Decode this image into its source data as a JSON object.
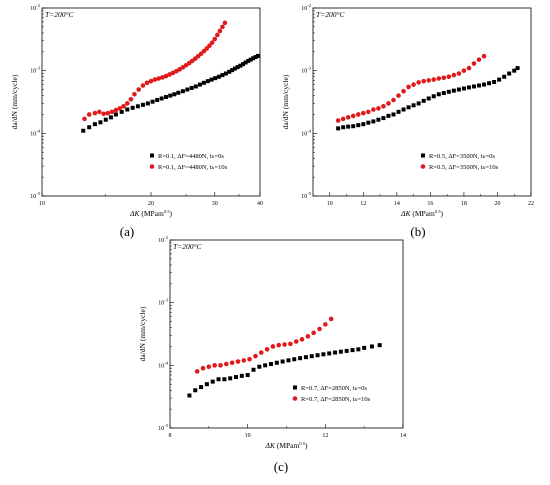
{
  "chart_data": [
    {
      "type": "scatter",
      "panel_label": "(a)",
      "annotation": "T=200°C",
      "xlabel": "ΔK (MPam^0.5)",
      "ylabel": "da/dN (mm/cycle)",
      "xscale": "log",
      "yscale": "log",
      "xlim": [
        10,
        40
      ],
      "ylim": [
        1e-05,
        0.01
      ],
      "x_ticks": [
        10,
        20,
        30,
        40
      ],
      "x_tick_labels": [
        "10",
        "20",
        "30",
        "40"
      ],
      "y_ticks": [
        1e-05,
        0.0001,
        0.001,
        0.01
      ],
      "legend_position": "bottom-right",
      "series": [
        {
          "name": "R=0.1, ΔF=4480N, tₕ=0s",
          "marker": "square",
          "color": "#000000",
          "x": [
            13.0,
            13.5,
            14.0,
            14.5,
            15.0,
            15.5,
            16.0,
            16.6,
            17.2,
            17.8,
            18.4,
            19.0,
            19.6,
            20.2,
            20.8,
            21.4,
            22.0,
            22.6,
            23.2,
            23.8,
            24.5,
            25.2,
            25.9,
            26.6,
            27.3,
            28.0,
            28.7,
            29.4,
            30.1,
            30.8,
            31.5,
            32.2,
            32.9,
            33.5,
            34.1,
            34.7,
            35.3,
            35.9,
            36.5,
            37.1,
            37.7,
            38.3,
            38.9,
            39.5
          ],
          "y": [
            0.00011,
            0.000125,
            0.00014,
            0.00015,
            0.000165,
            0.00018,
            0.0002,
            0.00022,
            0.00024,
            0.000255,
            0.00027,
            0.000285,
            0.0003,
            0.00032,
            0.00034,
            0.00036,
            0.00038,
            0.0004,
            0.00042,
            0.000445,
            0.00047,
            0.0005,
            0.00053,
            0.00056,
            0.0006,
            0.00064,
            0.00068,
            0.00072,
            0.00076,
            0.0008,
            0.00085,
            0.0009,
            0.00096,
            0.00102,
            0.00108,
            0.00114,
            0.0012,
            0.00127,
            0.00135,
            0.00143,
            0.0015,
            0.00158,
            0.00165,
            0.00172
          ]
        },
        {
          "name": "R=0.1, ΔF=4480N, tₕ=10s",
          "marker": "circle",
          "color": "#e0191b",
          "x": [
            13.1,
            13.5,
            14.0,
            14.4,
            14.8,
            15.2,
            15.6,
            16.0,
            16.4,
            16.8,
            17.2,
            17.6,
            18.0,
            18.5,
            19.0,
            19.5,
            20.0,
            20.5,
            21.0,
            21.5,
            22.0,
            22.5,
            23.0,
            23.5,
            24.0,
            24.5,
            25.0,
            25.5,
            26.0,
            26.5,
            27.0,
            27.5,
            28.0,
            28.5,
            29.0,
            29.5,
            30.0,
            30.5,
            31.0,
            31.5,
            32.0
          ],
          "y": [
            0.00017,
            0.0002,
            0.00021,
            0.00022,
            0.000205,
            0.00021,
            0.00022,
            0.000235,
            0.00025,
            0.00027,
            0.0003,
            0.00035,
            0.00042,
            0.0005,
            0.00058,
            0.00064,
            0.00068,
            0.00072,
            0.00075,
            0.00078,
            0.00082,
            0.00087,
            0.00092,
            0.00098,
            0.00105,
            0.00113,
            0.00122,
            0.00132,
            0.00143,
            0.00156,
            0.0017,
            0.00186,
            0.00205,
            0.00225,
            0.0025,
            0.0028,
            0.0032,
            0.0037,
            0.0043,
            0.005,
            0.0058
          ]
        }
      ]
    },
    {
      "type": "scatter",
      "panel_label": "(b)",
      "annotation": "T=200°C",
      "xlabel": "ΔK (MPam^0.5)",
      "ylabel": "da/dN (mm/cycle)",
      "xscale": "linear",
      "yscale": "log",
      "xlim": [
        9,
        22
      ],
      "ylim": [
        1e-05,
        0.01
      ],
      "x_ticks": [
        10,
        12,
        14,
        16,
        18,
        20,
        22
      ],
      "x_tick_labels": [
        "10",
        "12",
        "14",
        "16",
        "18",
        "20",
        "22"
      ],
      "y_ticks": [
        1e-05,
        0.0001,
        0.001,
        0.01
      ],
      "legend_position": "bottom-right",
      "series": [
        {
          "name": "R=0.5, ΔF=3500N, tₕ=0s",
          "marker": "square",
          "color": "#000000",
          "x": [
            10.5,
            10.8,
            11.1,
            11.4,
            11.7,
            12.0,
            12.3,
            12.6,
            12.9,
            13.2,
            13.5,
            13.8,
            14.1,
            14.4,
            14.7,
            15.0,
            15.3,
            15.6,
            15.9,
            16.2,
            16.5,
            16.8,
            17.1,
            17.4,
            17.7,
            18.0,
            18.3,
            18.6,
            18.9,
            19.2,
            19.5,
            19.8,
            20.1,
            20.4,
            20.7,
            21.0,
            21.2
          ],
          "y": [
            0.00012,
            0.000125,
            0.000128,
            0.00013,
            0.000135,
            0.00014,
            0.000148,
            0.000155,
            0.000165,
            0.000175,
            0.00019,
            0.0002,
            0.00022,
            0.00024,
            0.00026,
            0.00028,
            0.0003,
            0.00033,
            0.00036,
            0.00039,
            0.00042,
            0.00044,
            0.00046,
            0.00048,
            0.0005,
            0.00052,
            0.00054,
            0.00056,
            0.00058,
            0.0006,
            0.00063,
            0.00066,
            0.00072,
            0.0008,
            0.0009,
            0.001,
            0.0011
          ]
        },
        {
          "name": "R=0.5, ΔF=3500N, tₕ=10s",
          "marker": "circle",
          "color": "#e0191b",
          "x": [
            10.5,
            10.8,
            11.1,
            11.4,
            11.7,
            12.0,
            12.3,
            12.6,
            12.9,
            13.2,
            13.5,
            13.8,
            14.1,
            14.4,
            14.7,
            15.0,
            15.3,
            15.6,
            15.9,
            16.2,
            16.5,
            16.8,
            17.1,
            17.4,
            17.7,
            18.0,
            18.3,
            18.6,
            18.9,
            19.2
          ],
          "y": [
            0.00016,
            0.00017,
            0.00018,
            0.00019,
            0.0002,
            0.00021,
            0.00022,
            0.00024,
            0.00025,
            0.00027,
            0.0003,
            0.00034,
            0.0004,
            0.00047,
            0.00055,
            0.0006,
            0.00065,
            0.00068,
            0.0007,
            0.00072,
            0.00075,
            0.00077,
            0.0008,
            0.00085,
            0.0009,
            0.001,
            0.0011,
            0.0013,
            0.0015,
            0.0017
          ]
        }
      ]
    },
    {
      "type": "scatter",
      "panel_label": "(c)",
      "annotation": "T=200°C",
      "xlabel": "ΔK (MPam^0.5)",
      "ylabel": "da/dN (mm/cycle)",
      "xscale": "linear",
      "yscale": "log",
      "xlim": [
        8,
        14
      ],
      "ylim": [
        1e-05,
        0.01
      ],
      "x_ticks": [
        8,
        10,
        12,
        14
      ],
      "x_tick_labels": [
        "8",
        "10",
        "12",
        "14"
      ],
      "y_ticks": [
        1e-05,
        0.0001,
        0.001,
        0.01
      ],
      "legend_position": "bottom-right",
      "series": [
        {
          "name": "R=0.7, ΔF=2850N, tₕ=0s",
          "marker": "square",
          "color": "#000000",
          "x": [
            8.5,
            8.65,
            8.8,
            8.95,
            9.1,
            9.25,
            9.4,
            9.55,
            9.7,
            9.85,
            10.0,
            10.15,
            10.3,
            10.45,
            10.6,
            10.75,
            10.9,
            11.05,
            11.2,
            11.35,
            11.5,
            11.65,
            11.8,
            11.95,
            12.1,
            12.25,
            12.4,
            12.55,
            12.7,
            12.85,
            13.0,
            13.2,
            13.4
          ],
          "y": [
            3.3e-05,
            4e-05,
            4.5e-05,
            5e-05,
            5.5e-05,
            6e-05,
            6e-05,
            6.2e-05,
            6.5e-05,
            6.8e-05,
            7e-05,
            8.5e-05,
            9.5e-05,
            0.0001,
            0.000105,
            0.00011,
            0.000115,
            0.00012,
            0.000125,
            0.00013,
            0.000135,
            0.00014,
            0.000145,
            0.00015,
            0.000155,
            0.00016,
            0.000165,
            0.00017,
            0.000175,
            0.00018,
            0.00019,
            0.0002,
            0.00021
          ]
        },
        {
          "name": "R=0.7, ΔF=2850N, tₕ=10s",
          "marker": "circle",
          "color": "#e0191b",
          "x": [
            8.7,
            8.85,
            9.0,
            9.15,
            9.3,
            9.45,
            9.6,
            9.75,
            9.9,
            10.05,
            10.2,
            10.35,
            10.5,
            10.65,
            10.8,
            10.95,
            11.1,
            11.25,
            11.4,
            11.55,
            11.7,
            11.85,
            12.0,
            12.15
          ],
          "y": [
            8e-05,
            9e-05,
            9.5e-05,
            0.0001,
            0.0001,
            0.000105,
            0.00011,
            0.000115,
            0.00012,
            0.000125,
            0.00014,
            0.00016,
            0.00018,
            0.0002,
            0.00021,
            0.000215,
            0.00022,
            0.00024,
            0.00026,
            0.00029,
            0.00033,
            0.00038,
            0.00045,
            0.00055
          ]
        }
      ]
    }
  ]
}
